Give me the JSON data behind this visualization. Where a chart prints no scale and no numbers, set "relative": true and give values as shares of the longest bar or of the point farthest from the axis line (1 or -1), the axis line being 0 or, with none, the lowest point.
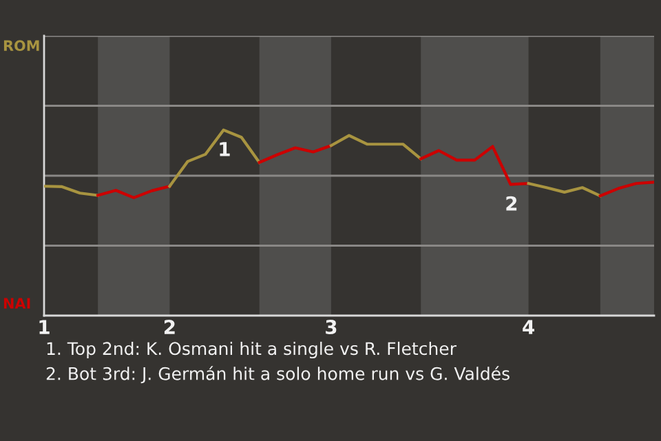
{
  "chart_data": {
    "type": "line",
    "relative": true,
    "categories": [
      "1",
      null,
      null,
      null,
      null,
      null,
      null,
      "2",
      null,
      null,
      null,
      null,
      null,
      null,
      null,
      null,
      "3",
      null,
      null,
      null,
      null,
      null,
      null,
      null,
      null,
      null,
      null,
      "4",
      null,
      null,
      null,
      null,
      null,
      null,
      null
    ],
    "series": [
      {
        "color": "#a89440",
        "values": [
          -0.23,
          -0.24,
          -0.38,
          -0.43,
          null,
          null,
          null,
          null,
          null,
          null,
          null,
          null,
          null,
          null,
          null,
          null,
          null,
          null,
          null,
          null,
          null,
          null,
          null,
          null,
          null,
          null,
          null,
          null,
          null,
          null,
          null,
          null,
          null,
          null,
          null
        ]
      },
      {
        "color": "#cc0000",
        "values": [
          null,
          null,
          null,
          -0.43,
          -0.32,
          -0.48,
          -0.33,
          -0.23,
          null,
          null,
          null,
          null,
          null,
          null,
          null,
          null,
          null,
          null,
          null,
          null,
          null,
          null,
          null,
          null,
          null,
          null,
          null,
          null,
          null,
          null,
          null,
          null,
          null,
          null,
          null
        ]
      },
      {
        "color": "#a89440",
        "values": [
          null,
          null,
          null,
          null,
          null,
          null,
          null,
          -0.23,
          0.31,
          0.47,
          1,
          0.84,
          0.29,
          null,
          null,
          null,
          null,
          null,
          null,
          null,
          null,
          null,
          null,
          null,
          null,
          null,
          null,
          null,
          null,
          null,
          null,
          null,
          null,
          null,
          null
        ]
      },
      {
        "color": "#cc0000",
        "values": [
          null,
          null,
          null,
          null,
          null,
          null,
          null,
          null,
          null,
          null,
          null,
          null,
          0.29,
          0.46,
          0.61,
          0.52,
          0.66,
          null,
          null,
          null,
          null,
          null,
          null,
          null,
          null,
          null,
          null,
          null,
          null,
          null,
          null,
          null,
          null,
          null,
          null
        ]
      },
      {
        "color": "#a89440",
        "values": [
          null,
          null,
          null,
          null,
          null,
          null,
          null,
          null,
          null,
          null,
          null,
          null,
          null,
          null,
          null,
          null,
          0.66,
          0.88,
          0.69,
          0.69,
          0.69,
          0.37,
          null,
          null,
          null,
          null,
          null,
          null,
          null,
          null,
          null,
          null,
          null,
          null,
          null
        ]
      },
      {
        "color": "#cc0000",
        "values": [
          null,
          null,
          null,
          null,
          null,
          null,
          null,
          null,
          null,
          null,
          null,
          null,
          null,
          null,
          null,
          null,
          null,
          null,
          null,
          null,
          null,
          0.37,
          0.55,
          0.34,
          0.34,
          0.64,
          -0.19,
          -0.17,
          null,
          null,
          null,
          null,
          null,
          null,
          null
        ]
      },
      {
        "color": "#a89440",
        "values": [
          null,
          null,
          null,
          null,
          null,
          null,
          null,
          null,
          null,
          null,
          null,
          null,
          null,
          null,
          null,
          null,
          null,
          null,
          null,
          null,
          null,
          null,
          null,
          null,
          null,
          null,
          null,
          -0.17,
          -0.26,
          -0.36,
          -0.26,
          -0.44,
          null,
          null,
          null
        ]
      },
      {
        "color": "#cc0000",
        "values": [
          null,
          null,
          null,
          null,
          null,
          null,
          null,
          null,
          null,
          null,
          null,
          null,
          null,
          null,
          null,
          null,
          null,
          null,
          null,
          null,
          null,
          null,
          null,
          null,
          null,
          null,
          null,
          null,
          null,
          null,
          null,
          -0.44,
          -0.28,
          -0.17,
          -0.14
        ]
      }
    ],
    "line_style": "solid",
    "annotations": [
      "ROM",
      "NAI",
      "1. Top 2nd: K. Osmani hit a single vs R. Fletcher",
      "2. Bot 3rd: J. Germán hit a solo home run vs G. Valdés",
      {
        "text": "1",
        "y": 1
      },
      {
        "text": "2",
        "y": -0.19
      }
    ]
  }
}
